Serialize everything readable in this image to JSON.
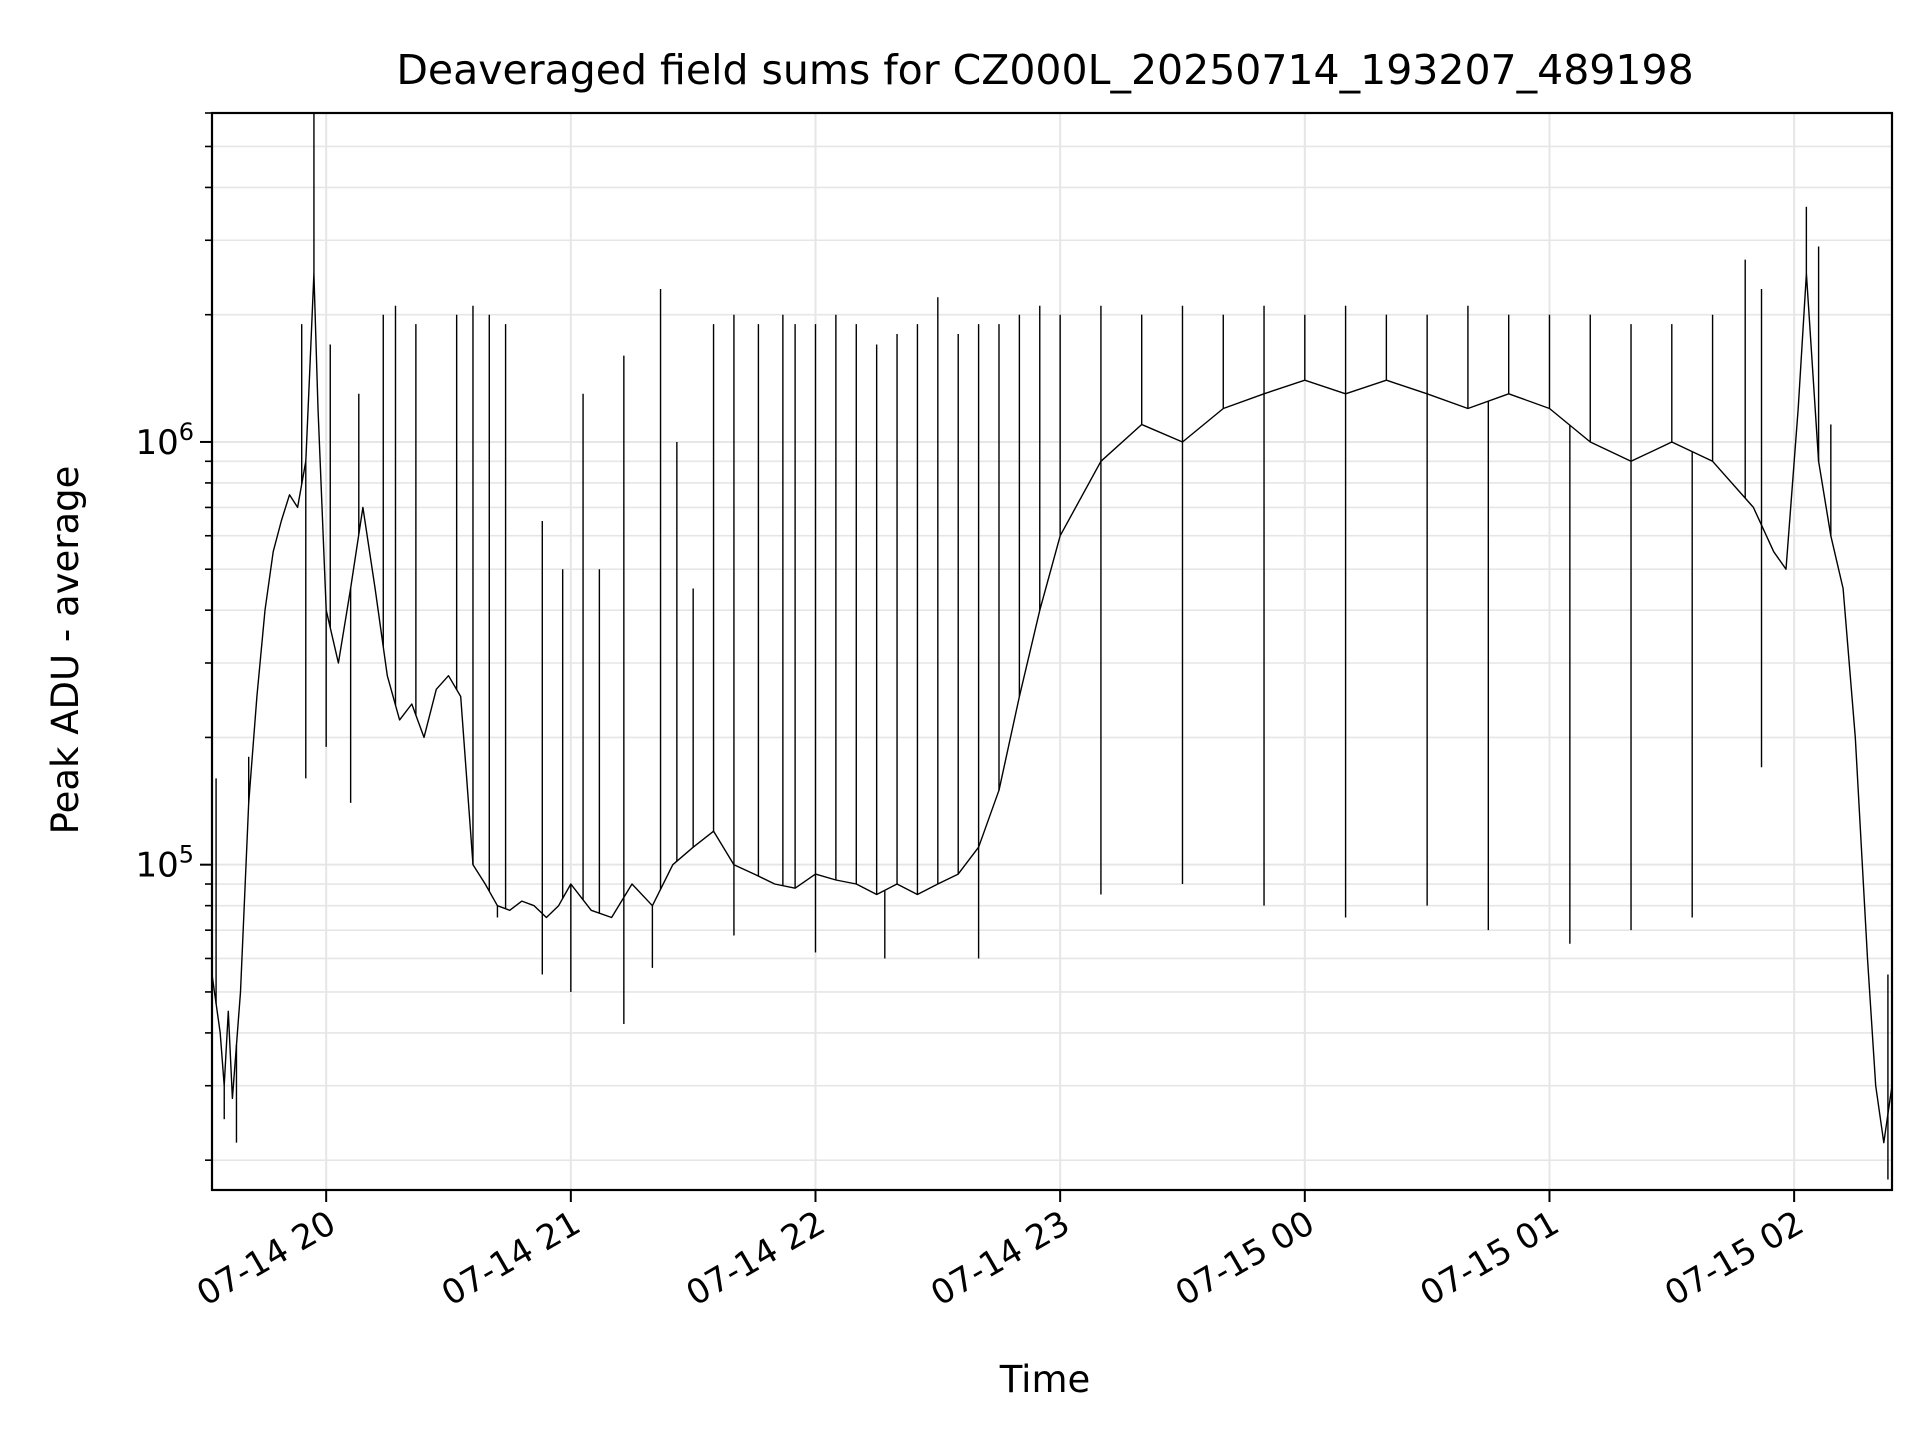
{
  "chart_data": {
    "type": "line",
    "title": "Deaveraged field sums for CZ000L_20250714_193207_489198",
    "xlabel": "Time",
    "ylabel": "Peak ADU - average",
    "yscale": "log",
    "grid": true,
    "grid_minor": true,
    "line_color": "#000000",
    "xlim": [
      "2025-07-14 19:32",
      "2025-07-15 02:24"
    ],
    "ylim": [
      17000,
      6000000
    ],
    "x_ticks": [
      {
        "value": "2025-07-14 20:00",
        "label": "07-14 20"
      },
      {
        "value": "2025-07-14 21:00",
        "label": "07-14 21"
      },
      {
        "value": "2025-07-14 22:00",
        "label": "07-14 22"
      },
      {
        "value": "2025-07-14 23:00",
        "label": "07-14 23"
      },
      {
        "value": "2025-07-15 00:00",
        "label": "07-15 00"
      },
      {
        "value": "2025-07-15 01:00",
        "label": "07-15 01"
      },
      {
        "value": "2025-07-15 02:00",
        "label": "07-15 02"
      }
    ],
    "y_ticks": [
      {
        "value": 100000,
        "base": "10",
        "exp": "5"
      },
      {
        "value": 1000000,
        "base": "10",
        "exp": "6"
      }
    ],
    "series": [
      {
        "points": [
          [
            "2025-07-14 19:32",
            55000
          ],
          [
            "2025-07-14 19:34",
            40000
          ],
          [
            "2025-07-14 19:35",
            30000
          ],
          [
            "2025-07-14 19:36",
            45000
          ],
          [
            "2025-07-14 19:37",
            28000
          ],
          [
            "2025-07-14 19:39",
            50000
          ],
          [
            "2025-07-14 19:41",
            140000
          ],
          [
            "2025-07-14 19:43",
            250000
          ],
          [
            "2025-07-14 19:45",
            400000
          ],
          [
            "2025-07-14 19:47",
            550000
          ],
          [
            "2025-07-14 19:49",
            650000
          ],
          [
            "2025-07-14 19:51",
            750000
          ],
          [
            "2025-07-14 19:53",
            700000
          ],
          [
            "2025-07-14 19:55",
            900000
          ],
          [
            "2025-07-14 19:56",
            1500000
          ],
          [
            "2025-07-14 19:57",
            2500000
          ],
          [
            "2025-07-14 19:58",
            1200000
          ],
          [
            "2025-07-14 20:00",
            400000
          ],
          [
            "2025-07-14 20:03",
            300000
          ],
          [
            "2025-07-14 20:06",
            450000
          ],
          [
            "2025-07-14 20:09",
            700000
          ],
          [
            "2025-07-14 20:12",
            450000
          ],
          [
            "2025-07-14 20:15",
            280000
          ],
          [
            "2025-07-14 20:18",
            220000
          ],
          [
            "2025-07-14 20:21",
            240000
          ],
          [
            "2025-07-14 20:24",
            200000
          ],
          [
            "2025-07-14 20:27",
            260000
          ],
          [
            "2025-07-14 20:30",
            280000
          ],
          [
            "2025-07-14 20:33",
            250000
          ],
          [
            "2025-07-14 20:36",
            100000
          ],
          [
            "2025-07-14 20:39",
            90000
          ],
          [
            "2025-07-14 20:42",
            80000
          ],
          [
            "2025-07-14 20:45",
            78000
          ],
          [
            "2025-07-14 20:48",
            82000
          ],
          [
            "2025-07-14 20:51",
            80000
          ],
          [
            "2025-07-14 20:54",
            75000
          ],
          [
            "2025-07-14 20:57",
            80000
          ],
          [
            "2025-07-14 21:00",
            90000
          ],
          [
            "2025-07-14 21:05",
            78000
          ],
          [
            "2025-07-14 21:10",
            75000
          ],
          [
            "2025-07-14 21:15",
            90000
          ],
          [
            "2025-07-14 21:20",
            80000
          ],
          [
            "2025-07-14 21:25",
            100000
          ],
          [
            "2025-07-14 21:30",
            110000
          ],
          [
            "2025-07-14 21:35",
            120000
          ],
          [
            "2025-07-14 21:40",
            100000
          ],
          [
            "2025-07-14 21:45",
            95000
          ],
          [
            "2025-07-14 21:50",
            90000
          ],
          [
            "2025-07-14 21:55",
            88000
          ],
          [
            "2025-07-14 22:00",
            95000
          ],
          [
            "2025-07-14 22:05",
            92000
          ],
          [
            "2025-07-14 22:10",
            90000
          ],
          [
            "2025-07-14 22:15",
            85000
          ],
          [
            "2025-07-14 22:20",
            90000
          ],
          [
            "2025-07-14 22:25",
            85000
          ],
          [
            "2025-07-14 22:30",
            90000
          ],
          [
            "2025-07-14 22:35",
            95000
          ],
          [
            "2025-07-14 22:40",
            110000
          ],
          [
            "2025-07-14 22:45",
            150000
          ],
          [
            "2025-07-14 22:50",
            250000
          ],
          [
            "2025-07-14 22:55",
            400000
          ],
          [
            "2025-07-14 23:00",
            600000
          ],
          [
            "2025-07-14 23:10",
            900000
          ],
          [
            "2025-07-14 23:20",
            1100000
          ],
          [
            "2025-07-14 23:30",
            1000000
          ],
          [
            "2025-07-14 23:40",
            1200000
          ],
          [
            "2025-07-14 23:50",
            1300000
          ],
          [
            "2025-07-15 00:00",
            1400000
          ],
          [
            "2025-07-15 00:10",
            1300000
          ],
          [
            "2025-07-15 00:20",
            1400000
          ],
          [
            "2025-07-15 00:30",
            1300000
          ],
          [
            "2025-07-15 00:40",
            1200000
          ],
          [
            "2025-07-15 00:50",
            1300000
          ],
          [
            "2025-07-15 01:00",
            1200000
          ],
          [
            "2025-07-15 01:10",
            1000000
          ],
          [
            "2025-07-15 01:20",
            900000
          ],
          [
            "2025-07-15 01:30",
            1000000
          ],
          [
            "2025-07-15 01:40",
            900000
          ],
          [
            "2025-07-15 01:50",
            700000
          ],
          [
            "2025-07-15 01:55",
            550000
          ],
          [
            "2025-07-15 01:58",
            500000
          ],
          [
            "2025-07-15 02:01",
            1200000
          ],
          [
            "2025-07-15 02:03",
            2500000
          ],
          [
            "2025-07-15 02:06",
            900000
          ],
          [
            "2025-07-15 02:09",
            600000
          ],
          [
            "2025-07-15 02:12",
            450000
          ],
          [
            "2025-07-15 02:15",
            200000
          ],
          [
            "2025-07-15 02:18",
            60000
          ],
          [
            "2025-07-15 02:20",
            30000
          ],
          [
            "2025-07-15 02:22",
            22000
          ],
          [
            "2025-07-15 02:24",
            30000
          ]
        ]
      }
    ],
    "spikes": [
      [
        "2025-07-14 19:33",
        160000
      ],
      [
        "2025-07-14 19:54",
        1900000
      ],
      [
        "2025-07-14 19:57",
        6000000
      ],
      [
        "2025-07-14 20:01",
        1700000
      ],
      [
        "2025-07-14 20:08",
        1300000
      ],
      [
        "2025-07-14 20:14",
        2000000
      ],
      [
        "2025-07-14 20:17",
        2100000
      ],
      [
        "2025-07-14 20:22",
        1900000
      ],
      [
        "2025-07-14 20:32",
        2000000
      ],
      [
        "2025-07-14 20:36",
        2100000
      ],
      [
        "2025-07-14 20:40",
        2000000
      ],
      [
        "2025-07-14 20:44",
        1900000
      ],
      [
        "2025-07-14 20:53",
        650000
      ],
      [
        "2025-07-14 20:58",
        500000
      ],
      [
        "2025-07-14 21:03",
        1300000
      ],
      [
        "2025-07-14 21:07",
        500000
      ],
      [
        "2025-07-14 21:13",
        1600000
      ],
      [
        "2025-07-14 21:22",
        2300000
      ],
      [
        "2025-07-14 21:26",
        1000000
      ],
      [
        "2025-07-14 21:30",
        450000
      ],
      [
        "2025-07-14 21:35",
        1900000
      ],
      [
        "2025-07-14 21:40",
        2000000
      ],
      [
        "2025-07-14 21:46",
        1900000
      ],
      [
        "2025-07-14 21:52",
        2000000
      ],
      [
        "2025-07-14 21:55",
        1900000
      ],
      [
        "2025-07-14 22:00",
        1900000
      ],
      [
        "2025-07-14 22:05",
        2000000
      ],
      [
        "2025-07-14 22:10",
        1900000
      ],
      [
        "2025-07-14 22:15",
        1700000
      ],
      [
        "2025-07-14 22:20",
        1800000
      ],
      [
        "2025-07-14 22:25",
        1900000
      ],
      [
        "2025-07-14 22:30",
        2200000
      ],
      [
        "2025-07-14 22:35",
        1800000
      ],
      [
        "2025-07-14 22:40",
        1900000
      ],
      [
        "2025-07-14 22:45",
        1900000
      ],
      [
        "2025-07-14 22:50",
        2000000
      ],
      [
        "2025-07-14 22:55",
        2100000
      ],
      [
        "2025-07-14 23:00",
        2000000
      ],
      [
        "2025-07-14 23:10",
        2100000
      ],
      [
        "2025-07-14 23:20",
        2000000
      ],
      [
        "2025-07-14 23:30",
        2100000
      ],
      [
        "2025-07-14 23:40",
        2000000
      ],
      [
        "2025-07-14 23:50",
        2100000
      ],
      [
        "2025-07-15 00:00",
        2000000
      ],
      [
        "2025-07-15 00:10",
        2100000
      ],
      [
        "2025-07-15 00:20",
        2000000
      ],
      [
        "2025-07-15 00:30",
        2000000
      ],
      [
        "2025-07-15 00:40",
        2100000
      ],
      [
        "2025-07-15 00:50",
        2000000
      ],
      [
        "2025-07-15 01:00",
        2000000
      ],
      [
        "2025-07-15 01:10",
        2000000
      ],
      [
        "2025-07-15 01:20",
        1900000
      ],
      [
        "2025-07-15 01:30",
        1900000
      ],
      [
        "2025-07-15 01:40",
        2000000
      ],
      [
        "2025-07-15 01:48",
        2700000
      ],
      [
        "2025-07-15 01:52",
        2300000
      ],
      [
        "2025-07-15 02:03",
        3600000
      ],
      [
        "2025-07-15 02:06",
        2900000
      ],
      [
        "2025-07-15 02:09",
        1100000
      ],
      [
        "2025-07-15 02:23",
        55000
      ]
    ],
    "dips": [
      [
        "2025-07-14 19:35",
        25000
      ],
      [
        "2025-07-14 19:38",
        22000
      ],
      [
        "2025-07-14 19:41",
        180000
      ],
      [
        "2025-07-14 19:55",
        160000
      ],
      [
        "2025-07-14 20:00",
        190000
      ],
      [
        "2025-07-14 20:06",
        140000
      ],
      [
        "2025-07-14 20:42",
        75000
      ],
      [
        "2025-07-14 20:53",
        55000
      ],
      [
        "2025-07-14 21:00",
        50000
      ],
      [
        "2025-07-14 21:13",
        42000
      ],
      [
        "2025-07-14 21:20",
        57000
      ],
      [
        "2025-07-14 21:40",
        68000
      ],
      [
        "2025-07-14 22:00",
        62000
      ],
      [
        "2025-07-14 22:17",
        60000
      ],
      [
        "2025-07-14 22:40",
        60000
      ],
      [
        "2025-07-14 23:10",
        85000
      ],
      [
        "2025-07-14 23:30",
        90000
      ],
      [
        "2025-07-14 23:50",
        80000
      ],
      [
        "2025-07-15 00:10",
        75000
      ],
      [
        "2025-07-15 00:30",
        80000
      ],
      [
        "2025-07-15 00:45",
        70000
      ],
      [
        "2025-07-15 01:05",
        65000
      ],
      [
        "2025-07-15 01:20",
        70000
      ],
      [
        "2025-07-15 01:35",
        75000
      ],
      [
        "2025-07-15 01:52",
        170000
      ],
      [
        "2025-07-15 02:23",
        18000
      ]
    ]
  }
}
